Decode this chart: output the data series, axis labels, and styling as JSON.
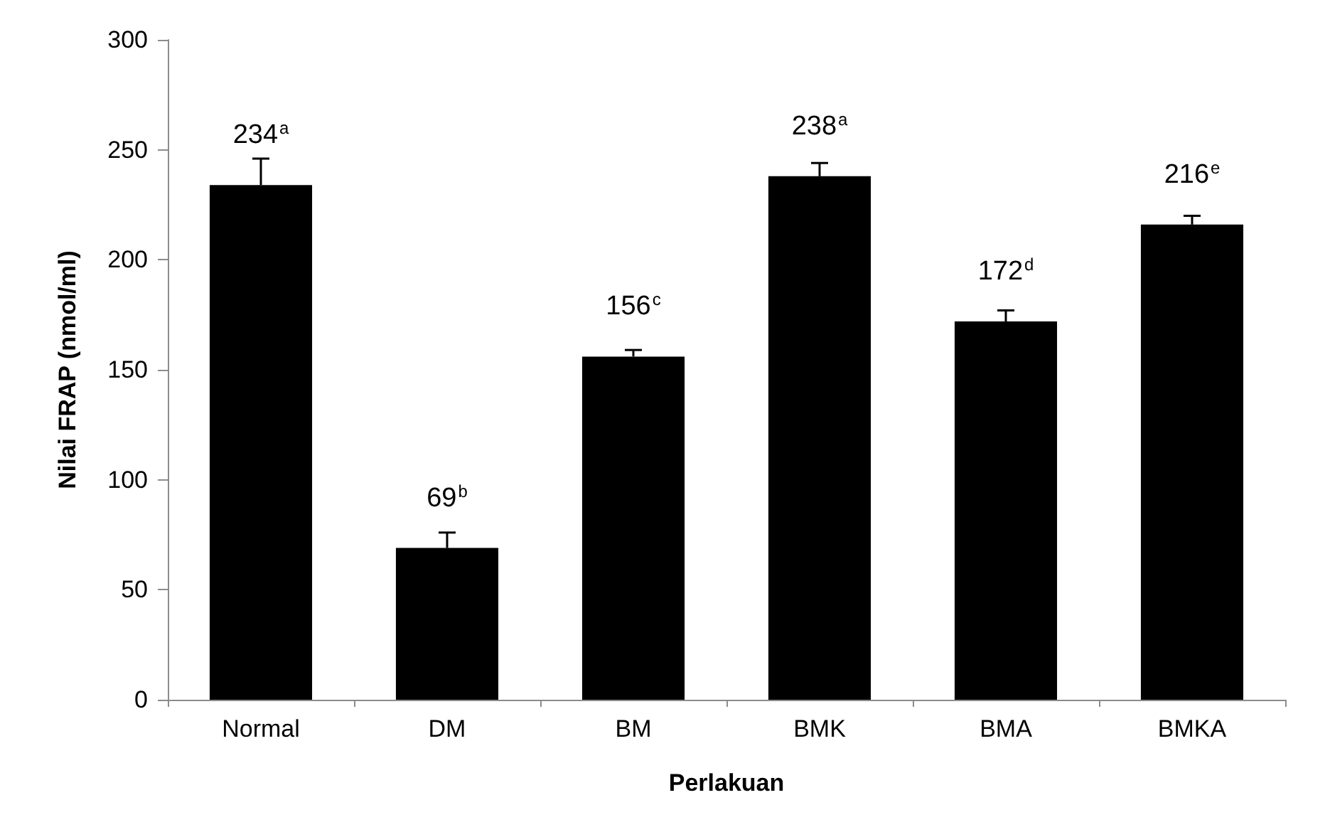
{
  "chart_data": {
    "type": "bar",
    "xlabel": "Perlakuan",
    "ylabel": "Nilai FRAP (nmol/ml)",
    "categories": [
      "Normal",
      "DM",
      "BM",
      "BMK",
      "BMA",
      "BMKA"
    ],
    "values": [
      234,
      69,
      156,
      238,
      172,
      216
    ],
    "value_labels": [
      "234$^{a}$",
      "69$^{b}$",
      "156$^{c}$",
      "238$^{a}$",
      "172$^{d}$",
      "216$^{e}$"
    ],
    "errors": [
      [
        234,
        246
      ],
      [
        69,
        76
      ],
      [
        156,
        159
      ],
      [
        238,
        244
      ],
      [
        172,
        177
      ],
      [
        216,
        220
      ]
    ],
    "color": "#000000",
    "ylim": [
      0,
      300
    ],
    "yticks": [
      0,
      50,
      100,
      150,
      200,
      250,
      300
    ]
  }
}
